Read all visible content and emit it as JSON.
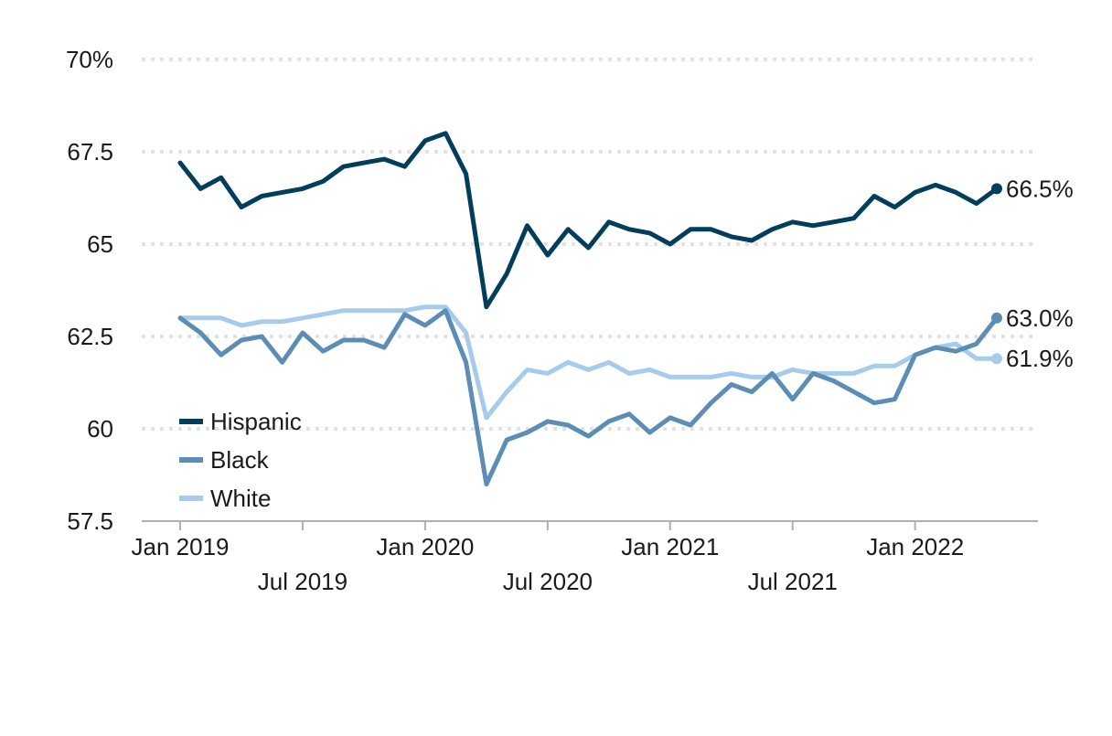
{
  "chart_data": {
    "type": "line",
    "title": "",
    "xlabel": "",
    "ylabel": "",
    "ylim": [
      57.5,
      70
    ],
    "y_ticks": [
      {
        "value": 70,
        "label": "70%"
      },
      {
        "value": 67.5,
        "label": "67.5"
      },
      {
        "value": 65,
        "label": "65"
      },
      {
        "value": 62.5,
        "label": "62.5"
      },
      {
        "value": 60,
        "label": "60"
      },
      {
        "value": 57.5,
        "label": "57.5"
      }
    ],
    "x_ticks": [
      {
        "date": "2019-01",
        "label": "Jan 2019"
      },
      {
        "date": "2019-07",
        "label": "Jul 2019"
      },
      {
        "date": "2020-01",
        "label": "Jan 2020"
      },
      {
        "date": "2020-07",
        "label": "Jul 2020"
      },
      {
        "date": "2021-01",
        "label": "Jan 2021"
      },
      {
        "date": "2021-07",
        "label": "Jul 2021"
      },
      {
        "date": "2022-01",
        "label": "Jan 2022"
      }
    ],
    "x_range": [
      "2018-12",
      "2022-06"
    ],
    "grid": true,
    "legend_position": "bottom-left",
    "x": [
      "2019-01",
      "2019-02",
      "2019-03",
      "2019-04",
      "2019-05",
      "2019-06",
      "2019-07",
      "2019-08",
      "2019-09",
      "2019-10",
      "2019-11",
      "2019-12",
      "2020-01",
      "2020-02",
      "2020-03",
      "2020-04",
      "2020-05",
      "2020-06",
      "2020-07",
      "2020-08",
      "2020-09",
      "2020-10",
      "2020-11",
      "2020-12",
      "2021-01",
      "2021-02",
      "2021-03",
      "2021-04",
      "2021-05",
      "2021-06",
      "2021-07",
      "2021-08",
      "2021-09",
      "2021-10",
      "2021-11",
      "2021-12",
      "2022-01",
      "2022-02",
      "2022-03",
      "2022-04",
      "2022-05"
    ],
    "series": [
      {
        "name": "Hispanic",
        "color": "#003e5c",
        "end_label": "66.5%",
        "values": [
          67.2,
          66.5,
          66.8,
          66.0,
          66.3,
          66.4,
          66.5,
          66.7,
          67.1,
          67.2,
          67.3,
          67.1,
          67.8,
          68.0,
          66.9,
          63.3,
          64.2,
          65.5,
          64.7,
          65.4,
          64.9,
          65.6,
          65.4,
          65.3,
          65.0,
          65.4,
          65.4,
          65.2,
          65.1,
          65.4,
          65.6,
          65.5,
          65.6,
          65.7,
          66.3,
          66.0,
          66.4,
          66.6,
          66.4,
          66.1,
          66.5
        ]
      },
      {
        "name": "Black",
        "color": "#5b8db5",
        "end_label": "63.0%",
        "values": [
          63.0,
          62.6,
          62.0,
          62.4,
          62.5,
          61.8,
          62.6,
          62.1,
          62.4,
          62.4,
          62.2,
          63.1,
          62.8,
          63.2,
          61.8,
          58.5,
          59.7,
          59.9,
          60.2,
          60.1,
          59.8,
          60.2,
          60.4,
          59.9,
          60.3,
          60.1,
          60.7,
          61.2,
          61.0,
          61.5,
          60.8,
          61.5,
          61.3,
          61.0,
          60.7,
          60.8,
          62.0,
          62.2,
          62.1,
          62.3,
          63.0
        ]
      },
      {
        "name": "White",
        "color": "#a6cbeb",
        "end_label": "61.9%",
        "values": [
          63.0,
          63.0,
          63.0,
          62.8,
          62.9,
          62.9,
          63.0,
          63.1,
          63.2,
          63.2,
          63.2,
          63.2,
          63.3,
          63.3,
          62.6,
          60.3,
          61.0,
          61.6,
          61.5,
          61.8,
          61.6,
          61.8,
          61.5,
          61.6,
          61.4,
          61.4,
          61.4,
          61.5,
          61.4,
          61.4,
          61.6,
          61.5,
          61.5,
          61.5,
          61.7,
          61.7,
          62.0,
          62.2,
          62.3,
          61.9,
          61.9
        ]
      }
    ]
  }
}
